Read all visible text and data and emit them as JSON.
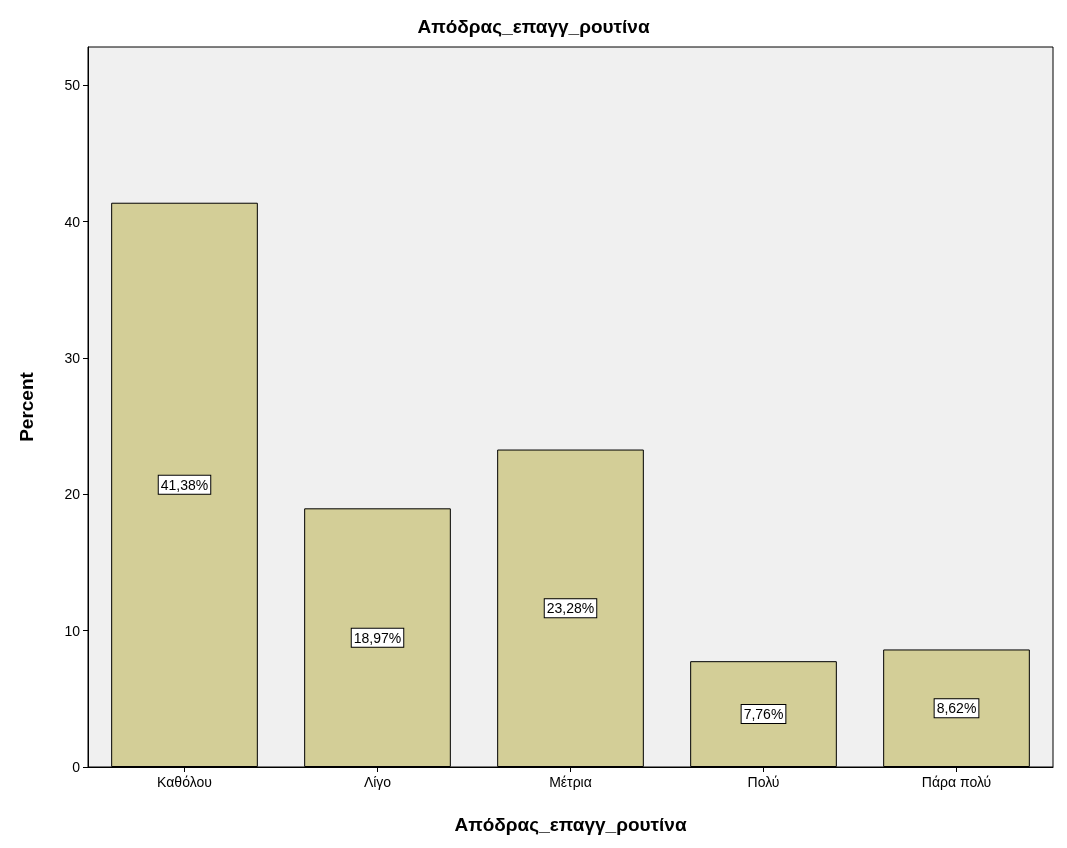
{
  "chart_data": {
    "type": "bar",
    "title": "Απόδρας_επαγγ_ρουτίνα",
    "xlabel": "Απόδρας_επαγγ_ρουτίνα",
    "ylabel": "Percent",
    "categories": [
      "Καθόλου",
      "Λίγο",
      "Μέτρια",
      "Πολύ",
      "Πάρα πολύ"
    ],
    "values": [
      41.38,
      18.97,
      23.28,
      7.76,
      8.62
    ],
    "value_labels": [
      "41,38%",
      "18,97%",
      "23,28%",
      "7,76%",
      "8,62%"
    ],
    "color": "#d3ce97",
    "ylim": [
      0,
      52.8
    ],
    "yticks": [
      0,
      10,
      20,
      30,
      40,
      50
    ],
    "grid": false
  }
}
